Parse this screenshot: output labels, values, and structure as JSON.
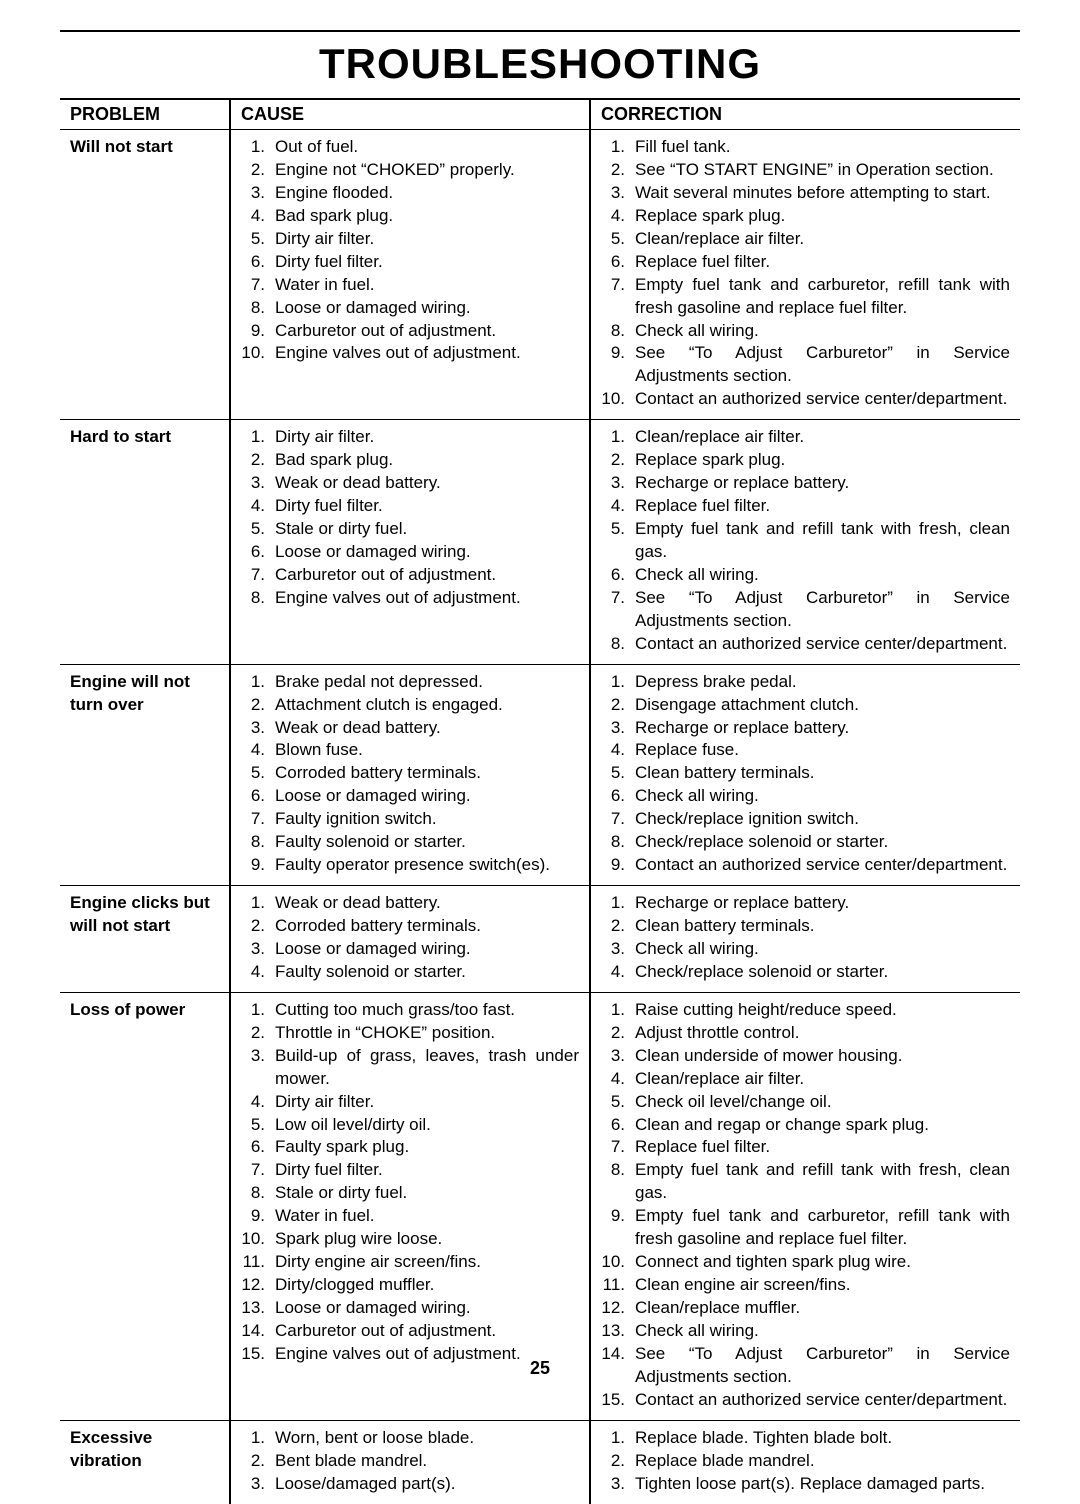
{
  "title": "TROUBLESHOOTING",
  "pageNumber": "25",
  "headers": {
    "problem": "PROBLEM",
    "cause": "CAUSE",
    "correction": "CORRECTION"
  },
  "rows": [
    {
      "problem": "Will not start",
      "cause": [
        "Out of fuel.",
        "Engine not “CHOKED” properly.",
        "Engine flooded.",
        "Bad spark plug.",
        "Dirty air filter.",
        "Dirty fuel filter.",
        "Water in fuel.",
        "Loose or damaged wiring.",
        "Carburetor out of adjustment.",
        "Engine valves out of adjustment."
      ],
      "correction": [
        "Fill fuel tank.",
        "See “TO START ENGINE” in Operation section.",
        "Wait several minutes before attempting to start.",
        "Replace spark plug.",
        "Clean/replace air filter.",
        "Replace fuel filter.",
        "Empty fuel tank and carburetor, refill tank with fresh gasoline and replace fuel filter.",
        "Check all wiring.",
        "See “To Adjust Carburetor” in Service Adjustments section.",
        "Contact an authorized service center/department."
      ]
    },
    {
      "problem": "Hard to start",
      "cause": [
        "Dirty air filter.",
        "Bad spark plug.",
        "Weak or dead battery.",
        "Dirty fuel filter.",
        "Stale or dirty fuel.",
        "Loose or damaged wiring.",
        "Carburetor out of adjustment.",
        "Engine valves out of adjustment."
      ],
      "correction": [
        "Clean/replace air filter.",
        "Replace spark plug.",
        "Recharge or replace battery.",
        "Replace fuel filter.",
        "Empty fuel tank and refill tank with fresh, clean gas.",
        "Check all wiring.",
        "See “To Adjust Carburetor” in Service Adjustments section.",
        "Contact an authorized service center/department."
      ]
    },
    {
      "problem": "Engine will not turn over",
      "cause": [
        "Brake pedal not depressed.",
        "Attachment clutch is engaged.",
        "Weak or dead battery.",
        "Blown fuse.",
        "Corroded battery terminals.",
        "Loose or damaged wiring.",
        "Faulty ignition switch.",
        "Faulty solenoid or starter.",
        "Faulty operator presence switch(es)."
      ],
      "correction": [
        "Depress brake pedal.",
        "Disengage attachment clutch.",
        "Recharge or replace battery.",
        "Replace fuse.",
        "Clean battery terminals.",
        "Check all wiring.",
        "Check/replace ignition switch.",
        "Check/replace solenoid or starter.",
        "Contact an authorized service center/department."
      ]
    },
    {
      "problem": "Engine clicks but will not start",
      "cause": [
        "Weak or dead battery.",
        "Corroded battery terminals.",
        "Loose or damaged wiring.",
        "Faulty solenoid or starter."
      ],
      "correction": [
        "Recharge or replace battery.",
        "Clean battery terminals.",
        "Check all wiring.",
        "Check/replace solenoid or starter."
      ]
    },
    {
      "problem": "Loss of power",
      "cause": [
        "Cutting too much grass/too fast.",
        "Throttle in “CHOKE” position.",
        "Build-up of grass, leaves, trash under mower.",
        "Dirty air filter.",
        "Low oil level/dirty oil.",
        "Faulty spark plug.",
        "Dirty fuel filter.",
        "Stale or dirty fuel.",
        "Water in fuel.",
        "Spark plug wire loose.",
        "Dirty engine air screen/fins.",
        "Dirty/clogged muffler.",
        "Loose or damaged wiring.",
        "Carburetor out of adjustment.",
        "Engine valves out of adjustment."
      ],
      "correction": [
        "Raise cutting height/reduce speed.",
        "Adjust throttle control.",
        "Clean underside of mower housing.",
        "Clean/replace air filter.",
        "Check oil level/change oil.",
        "Clean and regap or change spark plug.",
        "Replace fuel filter.",
        "Empty fuel tank and refill tank with fresh, clean gas.",
        "Empty fuel tank and carburetor, refill tank with fresh gasoline and replace fuel filter.",
        "Connect and tighten spark plug wire.",
        "Clean engine air screen/fins.",
        "Clean/replace muffler.",
        "Check all wiring.",
        "See “To Adjust Carburetor” in Service Adjustments section.",
        "Contact an authorized service center/department."
      ]
    },
    {
      "problem": "Excessive vibration",
      "cause": [
        "Worn, bent or loose blade.",
        "Bent blade mandrel.",
        "Loose/damaged part(s)."
      ],
      "correction": [
        "Replace blade. Tighten blade bolt.",
        "Replace blade mandrel.",
        "Tighten loose part(s).  Replace damaged parts."
      ]
    }
  ]
}
